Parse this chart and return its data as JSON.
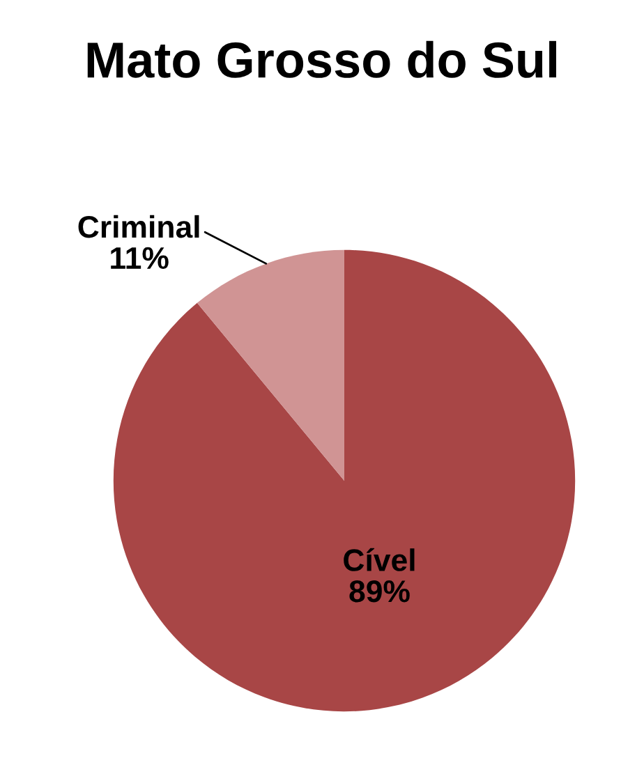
{
  "chart_data": {
    "type": "pie",
    "title": "Mato Grosso do Sul",
    "categories": [
      "Cível",
      "Criminal"
    ],
    "values": [
      89,
      11
    ],
    "value_labels": [
      "89%",
      "11%"
    ],
    "colors": [
      "#a84646",
      "#d09494"
    ],
    "legend": false
  }
}
